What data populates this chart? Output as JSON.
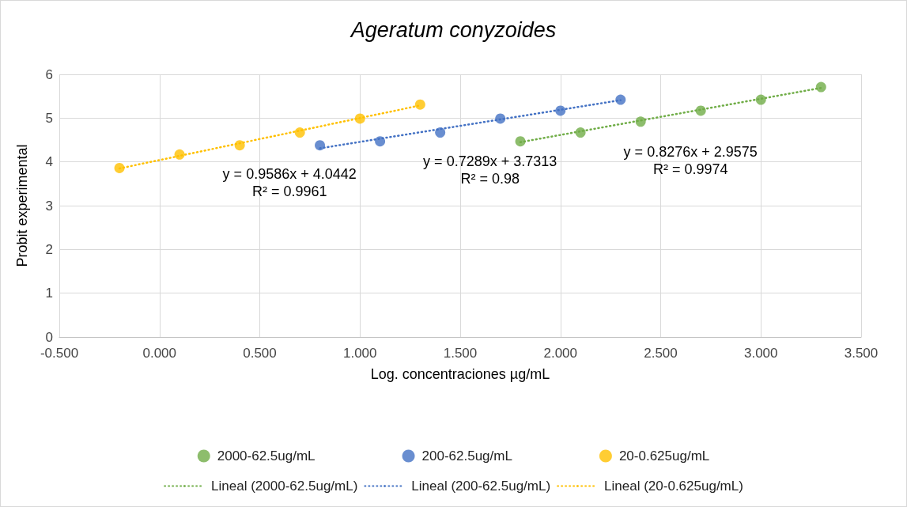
{
  "chart_data": {
    "type": "scatter",
    "title": "Ageratum conyzoides",
    "xlabel": "Log. concentraciones µg/mL",
    "ylabel": "Probit experimental",
    "xlim": [
      -0.5,
      3.5
    ],
    "xticks": [
      {
        "value": -0.5,
        "label": "-0.500"
      },
      {
        "value": 0,
        "label": "0.000"
      },
      {
        "value": 0.5,
        "label": "0.500"
      },
      {
        "value": 1,
        "label": "1.000"
      },
      {
        "value": 1.5,
        "label": "1.500"
      },
      {
        "value": 2,
        "label": "2.000"
      },
      {
        "value": 2.5,
        "label": "2.500"
      },
      {
        "value": 3,
        "label": "3.000"
      },
      {
        "value": 3.5,
        "label": "3.500"
      }
    ],
    "ylim": [
      0,
      6
    ],
    "yticks": [
      0,
      1,
      2,
      3,
      4,
      5,
      6
    ],
    "grid": true,
    "legend": "bottom",
    "series": [
      {
        "marker": "circle",
        "name": "2000-62.5ug/mL",
        "color": "#70ad47",
        "x": [
          1.8,
          2.1,
          2.4,
          2.7,
          3.0,
          3.3
        ],
        "values": [
          4.47,
          4.67,
          4.92,
          5.17,
          5.42,
          5.71
        ]
      },
      {
        "marker": "circle",
        "name": "200-62.5ug/mL",
        "color": "#4472c4",
        "x": [
          0.8,
          1.1,
          1.4,
          1.7,
          2.0,
          2.3
        ],
        "values": [
          4.38,
          4.47,
          4.67,
          4.99,
          5.17,
          5.42
        ]
      },
      {
        "marker": "circle",
        "name": "20-0.625ug/mL",
        "color": "#ffc000",
        "x": [
          -0.2,
          0.1,
          0.4,
          0.7,
          1.0,
          1.3
        ],
        "values": [
          3.86,
          4.17,
          4.38,
          4.67,
          4.99,
          5.31
        ]
      },
      {
        "type": "line",
        "marker": "none",
        "line_style": "dotted",
        "name": "Lineal (2000-62.5ug/mL)",
        "color": "#70ad47",
        "x": [
          1.8,
          3.3
        ],
        "values": [
          4.45,
          5.69
        ]
      },
      {
        "type": "line",
        "marker": "none",
        "line_style": "dotted",
        "name": "Lineal (200-62.5ug/mL)",
        "color": "#4472c4",
        "x": [
          0.8,
          2.3
        ],
        "values": [
          4.31,
          5.41
        ]
      },
      {
        "type": "line",
        "marker": "none",
        "line_style": "dotted",
        "name": "Lineal (20-0.625ug/mL)",
        "color": "#ffc000",
        "x": [
          -0.2,
          1.3
        ],
        "values": [
          3.85,
          5.29
        ]
      }
    ],
    "annotations": [
      "y = 0.8276x + 2.9575\nR² = 0.9974",
      "y = 0.7289x + 3.7313\nR² = 0.98",
      "y = 0.9586x + 4.0442\nR² = 0.9961"
    ]
  }
}
